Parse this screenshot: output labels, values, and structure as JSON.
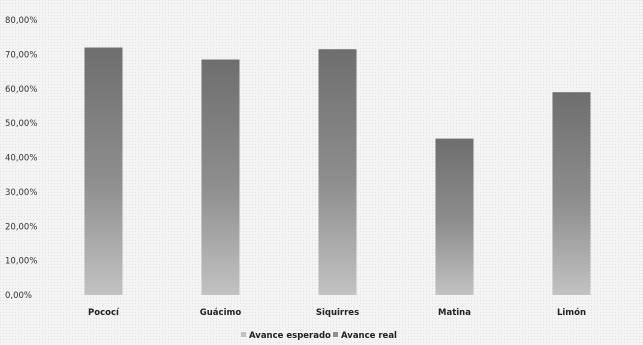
{
  "chart_data": {
    "type": "bar",
    "categories": [
      "Pococí",
      "Guácimo",
      "Siquirres",
      "Matina",
      "Limón"
    ],
    "series": [
      {
        "name": "Avance esperado",
        "values": [
          0,
          0,
          0,
          0,
          0
        ]
      },
      {
        "name": "Avance real",
        "values": [
          72.0,
          68.5,
          71.5,
          45.5,
          59.0
        ]
      }
    ],
    "ylim": [
      0,
      80
    ],
    "yticks": [
      0,
      10,
      20,
      30,
      40,
      50,
      60,
      70,
      80
    ],
    "ytick_labels": [
      "0,00%",
      "10,00%",
      "20,00%",
      "30,00%",
      "40,00%",
      "50,00%",
      "60,00%",
      "70,00%",
      "80,00%"
    ],
    "legend_position": "bottom",
    "grid": false,
    "colors": {
      "bar": "#8f8f8f",
      "bar_light": "#c2c2c2",
      "bar_dark": "#6e6e6e",
      "text": "#222222"
    }
  }
}
